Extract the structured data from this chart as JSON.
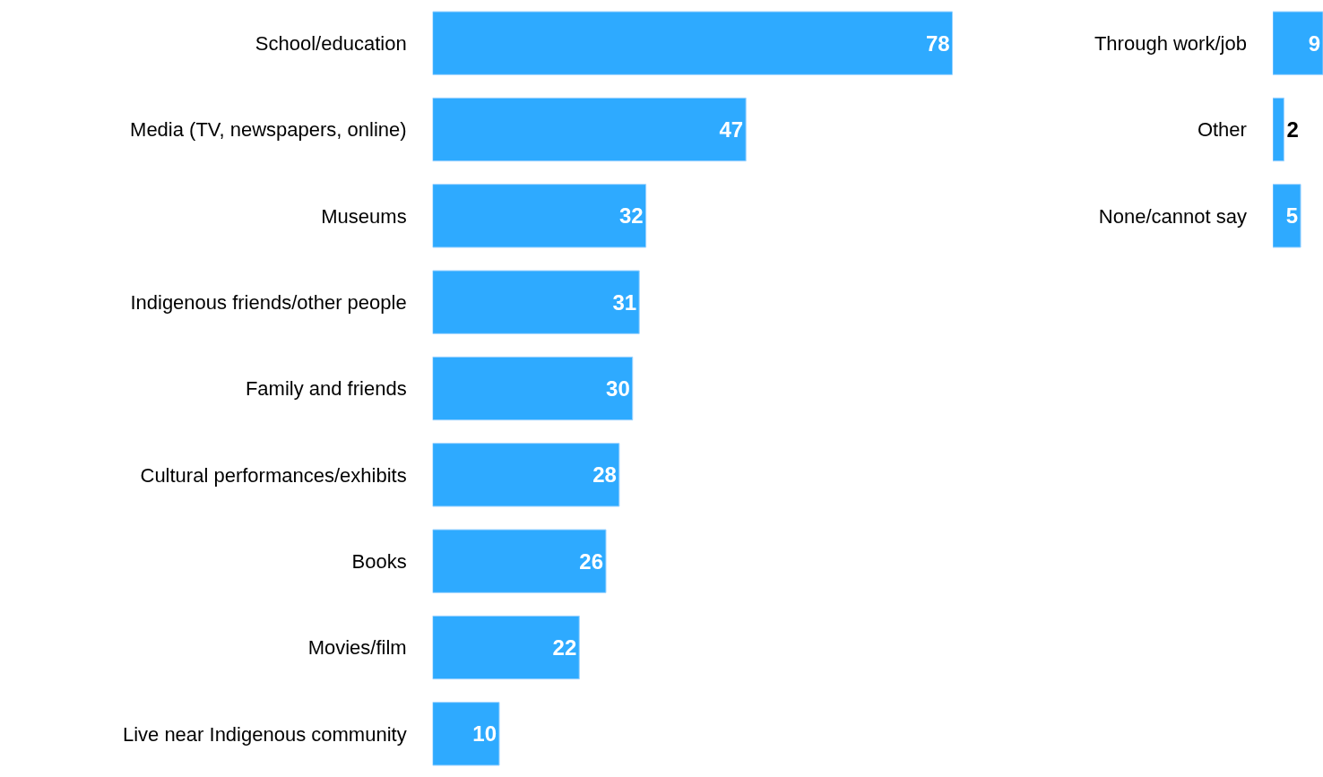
{
  "chart_data": [
    {
      "type": "bar",
      "orientation": "horizontal",
      "categories": [
        "School/education",
        "Media (TV, newspapers, online)",
        "Museums",
        "Indigenous friends/other people",
        "Family and friends",
        "Cultural performances/exhibits",
        "Books",
        "Movies/film",
        "Live near Indigenous community"
      ],
      "values": [
        78,
        47,
        32,
        31,
        30,
        28,
        26,
        22,
        10
      ],
      "color": "#2eaaff",
      "data_labels": true,
      "tick_labels": "y"
    },
    {
      "type": "bar",
      "orientation": "horizontal",
      "categories": [
        "Through work/job",
        "Other",
        "None/cannot say"
      ],
      "values": [
        9,
        2,
        5
      ],
      "color": "#2eaaff",
      "data_labels": true,
      "tick_labels": "y"
    }
  ]
}
